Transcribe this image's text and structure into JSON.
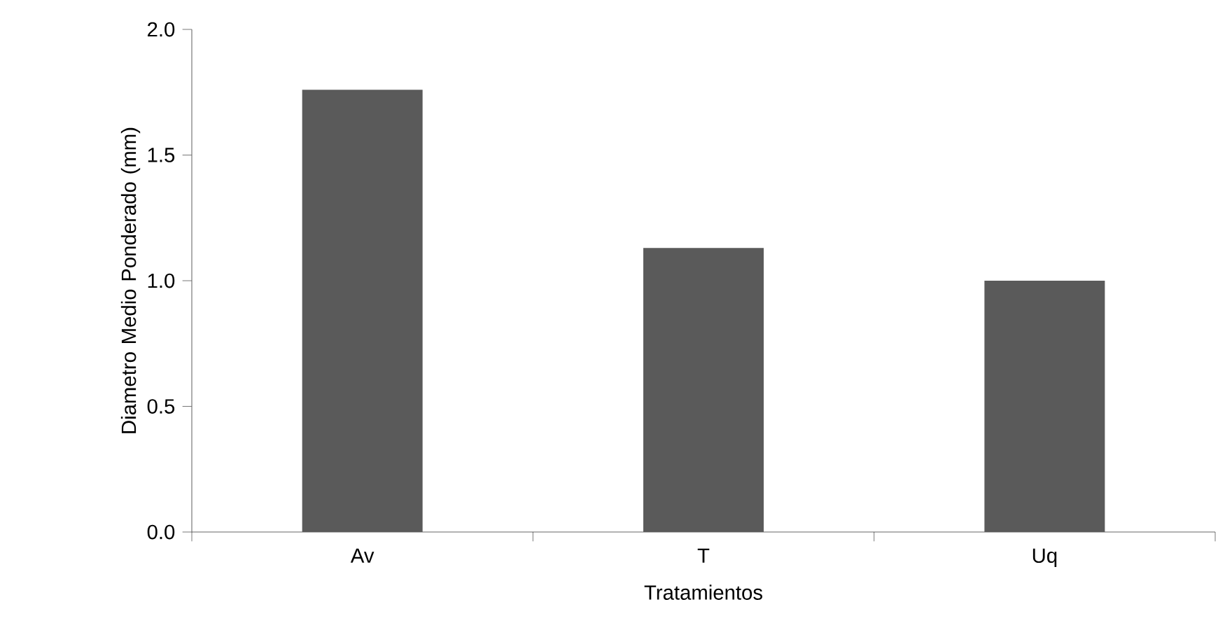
{
  "chart_data": {
    "type": "bar",
    "xlabel": "Tratamientos",
    "ylabel": "Diametro Medio Ponderado (mm)",
    "categories": [
      "Av",
      "T",
      "Uq"
    ],
    "values": [
      1.76,
      1.13,
      1.0
    ],
    "color": "#5a5a5a",
    "ylim": [
      0,
      2
    ],
    "yticks": [
      {
        "value": 0,
        "label": "0.0"
      },
      {
        "value": 0.5,
        "label": "0.5"
      },
      {
        "value": 1,
        "label": "1.0"
      },
      {
        "value": 1.5,
        "label": "1.5"
      },
      {
        "value": 2,
        "label": "2.0"
      }
    ],
    "grid": false
  }
}
